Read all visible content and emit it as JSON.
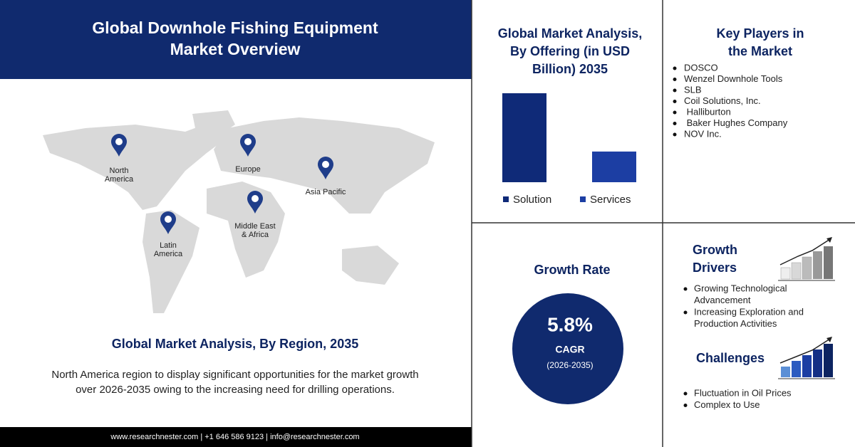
{
  "header": {
    "title": [
      "Global Downhole Fishing Equipment",
      "Market Overview"
    ]
  },
  "map": {
    "regions": [
      [
        "North",
        "America"
      ],
      [
        "Europe"
      ],
      [
        "Asia Pacific"
      ],
      [
        "Middle East",
        "& Africa"
      ],
      [
        "Latin",
        "America"
      ]
    ]
  },
  "region_section": {
    "title": "Global Market Analysis, By Region, 2035",
    "description": [
      "North America region to display significant opportunities for the market growth",
      "over 2026-2035 owing to the increasing need for drilling operations."
    ]
  },
  "footer": "www.researchnester.com | +1 646 586 9123 | info@researchnester.com",
  "chart_data": {
    "type": "bar",
    "title": [
      "Global Market Analysis,",
      "By Offering (in USD",
      "Billion) 2035"
    ],
    "categories": [
      "Solution",
      "Services"
    ],
    "values": [
      2.9,
      1.0
    ],
    "colors": [
      "#0f2a78",
      "#1c3ea3"
    ]
  },
  "key_players": {
    "title": [
      "Key Players in",
      "the Market"
    ],
    "items": [
      "DOSCO",
      "Wenzel Downhole Tools",
      "SLB",
      "Coil Solutions, Inc.",
      " Halliburton",
      " Baker Hughes Company",
      "NOV Inc."
    ]
  },
  "growth_rate": {
    "title": "Growth Rate",
    "value": "5.8%",
    "label": "CAGR",
    "period": "(2026-2035)"
  },
  "growth_drivers": {
    "title": [
      "Growth",
      "Drivers"
    ],
    "items": [
      [
        "Growing Technological",
        "Advancement"
      ],
      [
        "Increasing Exploration and",
        "Production Activities"
      ]
    ]
  },
  "challenges": {
    "title": "Challenges",
    "items": [
      [
        "Fluctuation in Oil Prices"
      ],
      [
        "Complex to Use"
      ]
    ]
  }
}
